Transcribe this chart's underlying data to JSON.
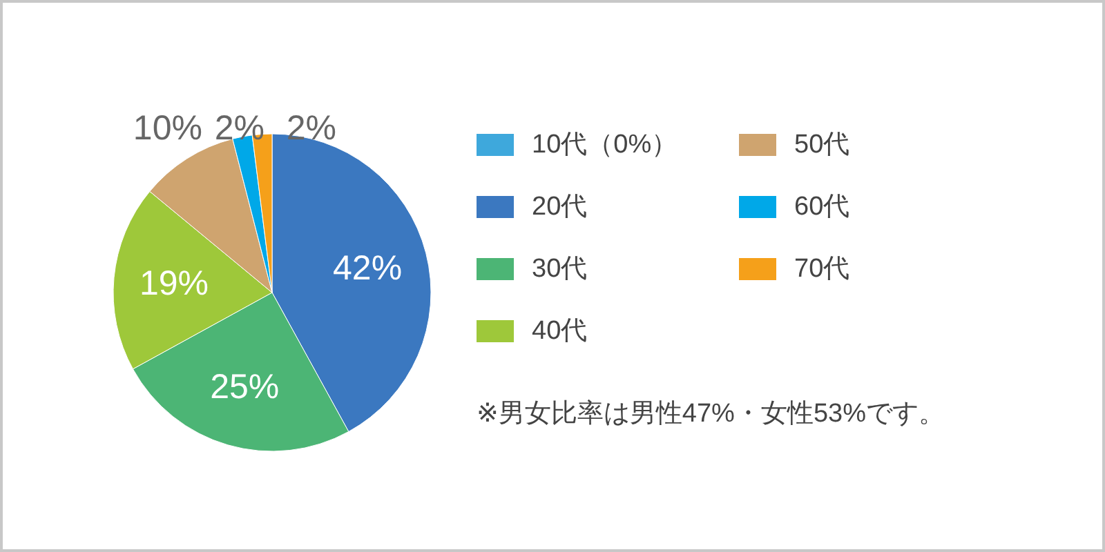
{
  "chart_data": {
    "type": "pie",
    "categories": [
      "10代（0%）",
      "20代",
      "30代",
      "40代",
      "50代",
      "60代",
      "70代"
    ],
    "values": [
      0,
      42,
      25,
      19,
      10,
      2,
      2
    ],
    "colors": [
      "#3ea8dc",
      "#3b78c0",
      "#4cb575",
      "#9ec83a",
      "#cfa46f",
      "#00a8e8",
      "#f5a01a"
    ],
    "value_labels": [
      null,
      "42%",
      "25%",
      "19%",
      "10%",
      "2%",
      "2%"
    ],
    "legend": "right",
    "annotations": [
      "※男女比率は男性47%・女性53%です。"
    ]
  }
}
